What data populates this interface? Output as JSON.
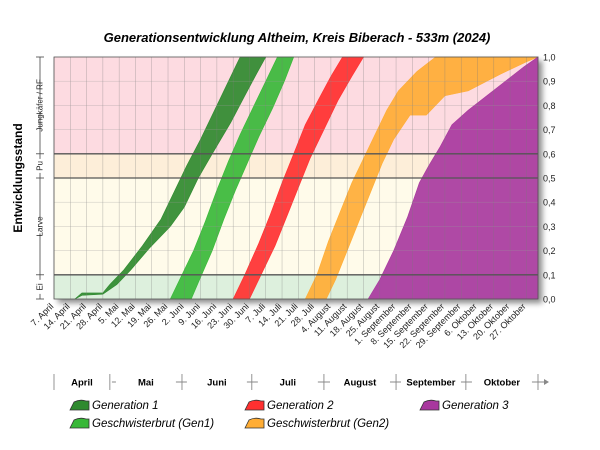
{
  "chart_data": {
    "type": "area",
    "title": "Generationsentwicklung Altheim, Kreis Biberach - 533m (2024)",
    "ylabel": "Entwicklungsstand",
    "ylim": [
      0,
      1
    ],
    "y_ticks": [
      "0,0",
      "0,1",
      "0,2",
      "0,3",
      "0,4",
      "0,5",
      "0,6",
      "0,7",
      "0,8",
      "0,9",
      "1,0"
    ],
    "x_start_day": 0,
    "x_end_day": 208,
    "x_ticks": [
      {
        "label": "7. April",
        "day": 0
      },
      {
        "label": "14. April",
        "day": 7
      },
      {
        "label": "21. April",
        "day": 14
      },
      {
        "label": "28. April",
        "day": 21
      },
      {
        "label": "5. Mai",
        "day": 28
      },
      {
        "label": "12. Mai",
        "day": 35
      },
      {
        "label": "19. Mai",
        "day": 42
      },
      {
        "label": "26. Mai",
        "day": 49
      },
      {
        "label": "2. Juni",
        "day": 56
      },
      {
        "label": "9. Juni",
        "day": 63
      },
      {
        "label": "16. Juni",
        "day": 70
      },
      {
        "label": "23. Juni",
        "day": 77
      },
      {
        "label": "30. Juni",
        "day": 84
      },
      {
        "label": "7. Juli",
        "day": 91
      },
      {
        "label": "14. Juli",
        "day": 98
      },
      {
        "label": "21. Juli",
        "day": 105
      },
      {
        "label": "28. Juli",
        "day": 112
      },
      {
        "label": "4. August",
        "day": 119
      },
      {
        "label": "11. August",
        "day": 126
      },
      {
        "label": "18. August",
        "day": 133
      },
      {
        "label": "25. August",
        "day": 140
      },
      {
        "label": "1. September",
        "day": 147
      },
      {
        "label": "8. September",
        "day": 154
      },
      {
        "label": "15. September",
        "day": 161
      },
      {
        "label": "22. September",
        "day": 168
      },
      {
        "label": "29. September",
        "day": 175
      },
      {
        "label": "6. Oktober",
        "day": 182
      },
      {
        "label": "13. Oktober",
        "day": 189
      },
      {
        "label": "20. Oktober",
        "day": 196
      },
      {
        "label": "27. Oktober",
        "day": 203
      }
    ],
    "months": [
      {
        "label": "April",
        "start": 0,
        "end": 24
      },
      {
        "label": "Mai",
        "start": 24,
        "end": 55
      },
      {
        "label": "Juni",
        "start": 55,
        "end": 85
      },
      {
        "label": "Juli",
        "start": 85,
        "end": 116
      },
      {
        "label": "August",
        "start": 116,
        "end": 147
      },
      {
        "label": "September",
        "start": 147,
        "end": 177
      },
      {
        "label": "Oktober",
        "start": 177,
        "end": 208
      }
    ],
    "stages": [
      {
        "label": "Ei",
        "from": 0,
        "to": 0.1,
        "color": "#ddf0dd"
      },
      {
        "label": "Larve",
        "from": 0.1,
        "to": 0.5,
        "color": "#fffbea"
      },
      {
        "label": "Pu",
        "from": 0.5,
        "to": 0.6,
        "color": "#fdeed9"
      },
      {
        "label": "Jungkäfer / RF",
        "from": 0.6,
        "to": 1.0,
        "color": "#fddbe1"
      }
    ],
    "series": [
      {
        "name": "Generation 1",
        "color": "#2f8a2f",
        "lead": [
          [
            9,
            0.0
          ],
          [
            12,
            0.025
          ],
          [
            21,
            0.025
          ],
          [
            24,
            0.06
          ],
          [
            30,
            0.12
          ],
          [
            38,
            0.22
          ],
          [
            46,
            0.33
          ],
          [
            52,
            0.45
          ],
          [
            57,
            0.55
          ],
          [
            63,
            0.66
          ],
          [
            69,
            0.78
          ],
          [
            74,
            0.88
          ],
          [
            78,
            0.96
          ],
          [
            80,
            1.0
          ]
        ],
        "trail": [
          [
            9,
            0.0
          ],
          [
            12,
            0.015
          ],
          [
            21,
            0.02
          ],
          [
            27,
            0.06
          ],
          [
            33,
            0.12
          ],
          [
            41,
            0.21
          ],
          [
            50,
            0.3
          ],
          [
            56,
            0.38
          ],
          [
            62,
            0.5
          ],
          [
            68,
            0.6
          ],
          [
            76,
            0.73
          ],
          [
            82,
            0.84
          ],
          [
            87,
            0.93
          ],
          [
            91,
            1.0
          ]
        ]
      },
      {
        "name": "Geschwisterbrut (Gen1)",
        "color": "#38b838",
        "lead": [
          [
            50,
            0.0
          ],
          [
            54,
            0.08
          ],
          [
            60,
            0.2
          ],
          [
            65,
            0.32
          ],
          [
            70,
            0.45
          ],
          [
            75,
            0.57
          ],
          [
            80,
            0.68
          ],
          [
            86,
            0.8
          ],
          [
            91,
            0.9
          ],
          [
            96,
            1.0
          ]
        ],
        "trail": [
          [
            59,
            0.0
          ],
          [
            63,
            0.09
          ],
          [
            68,
            0.2
          ],
          [
            73,
            0.33
          ],
          [
            78,
            0.45
          ],
          [
            83,
            0.56
          ],
          [
            88,
            0.67
          ],
          [
            94,
            0.79
          ],
          [
            99,
            0.9
          ],
          [
            103,
            1.0
          ]
        ]
      },
      {
        "name": "Generation 2",
        "color": "#ff3030",
        "lead": [
          [
            77,
            0.0
          ],
          [
            82,
            0.1
          ],
          [
            88,
            0.23
          ],
          [
            93,
            0.35
          ],
          [
            98,
            0.48
          ],
          [
            103,
            0.6
          ],
          [
            108,
            0.72
          ],
          [
            114,
            0.83
          ],
          [
            119,
            0.92
          ],
          [
            124,
            1.0
          ]
        ],
        "trail": [
          [
            84,
            0.0
          ],
          [
            89,
            0.1
          ],
          [
            95,
            0.22
          ],
          [
            100,
            0.34
          ],
          [
            105,
            0.46
          ],
          [
            110,
            0.58
          ],
          [
            116,
            0.7
          ],
          [
            122,
            0.82
          ],
          [
            128,
            0.92
          ],
          [
            133,
            1.0
          ]
        ]
      },
      {
        "name": "Geschwisterbrut (Gen2)",
        "color": "#ffad35",
        "lead": [
          [
            108,
            0.0
          ],
          [
            113,
            0.1
          ],
          [
            118,
            0.24
          ],
          [
            123,
            0.36
          ],
          [
            128,
            0.48
          ],
          [
            133,
            0.58
          ],
          [
            138,
            0.68
          ],
          [
            143,
            0.78
          ],
          [
            148,
            0.86
          ],
          [
            156,
            0.94
          ],
          [
            164,
            1.0
          ]
        ],
        "trail": [
          [
            117,
            0.0
          ],
          [
            121,
            0.08
          ],
          [
            126,
            0.2
          ],
          [
            131,
            0.32
          ],
          [
            136,
            0.44
          ],
          [
            141,
            0.56
          ],
          [
            146,
            0.66
          ],
          [
            153,
            0.76
          ],
          [
            160,
            0.76
          ],
          [
            168,
            0.84
          ],
          [
            178,
            0.86
          ],
          [
            192,
            0.93
          ],
          [
            203,
            0.98
          ],
          [
            208,
            1.0
          ]
        ]
      },
      {
        "name": "Generation 3",
        "color": "#a8389e",
        "lead": [
          [
            135,
            0.0
          ],
          [
            140,
            0.08
          ],
          [
            146,
            0.2
          ],
          [
            152,
            0.34
          ],
          [
            157,
            0.48
          ],
          [
            161,
            0.55
          ],
          [
            166,
            0.63
          ],
          [
            171,
            0.72
          ],
          [
            178,
            0.78
          ],
          [
            186,
            0.84
          ],
          [
            194,
            0.9
          ],
          [
            202,
            0.96
          ],
          [
            208,
            1.0
          ]
        ],
        "trail": [
          [
            135,
            0.0
          ],
          [
            208,
            0.0
          ]
        ]
      }
    ]
  },
  "legend": [
    {
      "label": "Generation 1",
      "color": "#2f8a2f"
    },
    {
      "label": "Generation 2",
      "color": "#ff3030"
    },
    {
      "label": "Generation 3",
      "color": "#a8389e"
    },
    {
      "label": "Geschwisterbrut (Gen1)",
      "color": "#38b838"
    },
    {
      "label": "Geschwisterbrut (Gen2)",
      "color": "#ffad35"
    }
  ]
}
